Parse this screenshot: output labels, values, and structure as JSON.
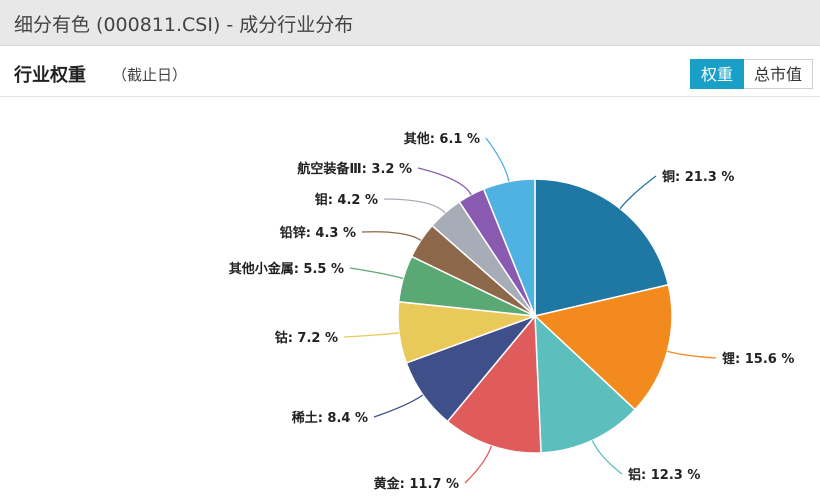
{
  "header": {
    "title": "细分有色 (000811.CSI) - 成分行业分布"
  },
  "section": {
    "title": "行业权重",
    "subtitle": "（截止日）",
    "toggle": {
      "active": "权重",
      "inactive": "总市值"
    }
  },
  "chart_data": {
    "type": "pie",
    "start_angle_deg": 0,
    "direction": "clockwise",
    "slices": [
      {
        "label": "铜",
        "value": 21.3,
        "display": "铜: 21.3 %",
        "color": "#1f77a3"
      },
      {
        "label": "锂",
        "value": 15.6,
        "display": "锂: 15.6 %",
        "color": "#f28a1e"
      },
      {
        "label": "铝",
        "value": 12.3,
        "display": "铝: 12.3 %",
        "color": "#5cbfbe"
      },
      {
        "label": "黄金",
        "value": 11.7,
        "display": "黄金: 11.7 %",
        "color": "#e05c5c"
      },
      {
        "label": "稀土",
        "value": 8.4,
        "display": "稀土: 8.4 %",
        "color": "#3f4f8a"
      },
      {
        "label": "钴",
        "value": 7.2,
        "display": "钴: 7.2 %",
        "color": "#e8c95a"
      },
      {
        "label": "其他小金属",
        "value": 5.5,
        "display": "其他小金属: 5.5 %",
        "color": "#5aa873"
      },
      {
        "label": "铅锌",
        "value": 4.3,
        "display": "铅锌: 4.3 %",
        "color": "#8d6749"
      },
      {
        "label": "钼",
        "value": 4.2,
        "display": "钼: 4.2 %",
        "color": "#a7adb6"
      },
      {
        "label": "航空装备Ⅲ",
        "value": 3.2,
        "display": "航空装备Ⅲ: 3.2 %",
        "color": "#8a5ab0"
      },
      {
        "label": "其他",
        "value": 6.1,
        "display": "其他: 6.1 %",
        "color": "#4fb2e0"
      }
    ]
  }
}
